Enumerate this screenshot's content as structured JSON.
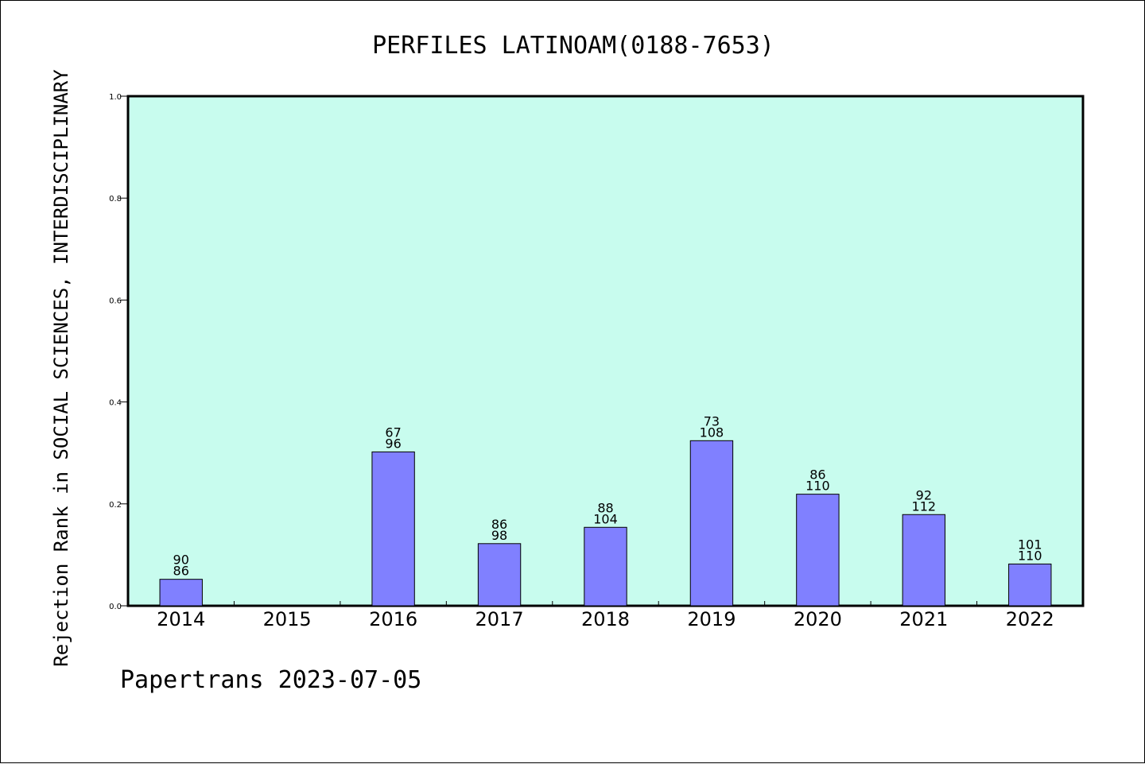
{
  "chart_data": {
    "type": "bar",
    "title": "PERFILES LATINOAM(0188-7653)",
    "xlabel": "",
    "ylabel": "Rejection Rank in SOCIAL SCIENCES, INTERDISCIPLINARY",
    "footer": "Papertrans 2023-07-05",
    "ylim": [
      0,
      1.0
    ],
    "yticks": [
      "0.0",
      "0.2",
      "0.4",
      "0.6",
      "0.8",
      "1.0"
    ],
    "categories": [
      "2014",
      "2015",
      "2016",
      "2017",
      "2018",
      "2019",
      "2020",
      "2021",
      "2022"
    ],
    "values": [
      0.052,
      null,
      0.302,
      0.122,
      0.154,
      0.324,
      0.219,
      0.179,
      0.082
    ],
    "label_top": [
      "90",
      "",
      "67",
      "86",
      "88",
      "73",
      "86",
      "92",
      "101"
    ],
    "label_bottom": [
      "86",
      "",
      "96",
      "98",
      "104",
      "108",
      "110",
      "112",
      "110"
    ],
    "grid": false,
    "legend": "none",
    "colors": {
      "plot_bg": "#c8fcee",
      "bar": "#8080ff",
      "axis": "#000000"
    }
  }
}
